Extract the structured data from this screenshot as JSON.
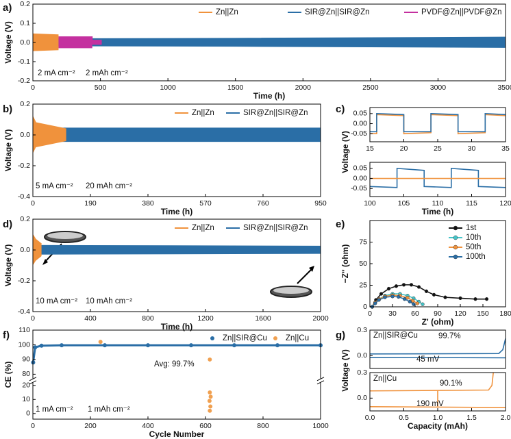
{
  "chart_data": [
    {
      "panel": "a)",
      "type": "band",
      "xlabel": "Time (h)",
      "ylabel": "Voltage (V)",
      "xlim": [
        0,
        3500
      ],
      "xticks": [
        0,
        500,
        1000,
        1500,
        2000,
        2500,
        3000,
        3500
      ],
      "ylim": [
        -0.2,
        0.2
      ],
      "yticks": [
        -0.2,
        -0.1,
        {
          "value": 0,
          "label": "0.0"
        },
        0.1,
        0.2
      ],
      "annotations": [
        "2 mA cm⁻²",
        "2 mAh cm⁻²"
      ],
      "series": [
        {
          "name": "Zn||Zn",
          "color": "#f0923c",
          "x": [
            0,
            190
          ],
          "values": [
            0.045,
            0.04
          ]
        },
        {
          "name": "SIR@Zn||SIR@Zn",
          "color": "#2a6ea6",
          "x": [
            0,
            500,
            1500,
            3500
          ],
          "values": [
            0.02,
            0.02,
            0.022,
            0.028
          ]
        },
        {
          "name": "PVDF@Zn||PVDF@Zn",
          "color": "#c4309f",
          "x": [
            190,
            440,
            440,
            510
          ],
          "values": [
            0.03,
            0.03,
            0.012,
            0.012
          ]
        }
      ]
    },
    {
      "panel": "b)",
      "type": "band",
      "xlabel": "Time (h)",
      "ylabel": "Voltage (V)",
      "xlim": [
        0,
        950
      ],
      "xticks": [
        0,
        190,
        380,
        570,
        760,
        950
      ],
      "ylim": [
        -0.4,
        0.2
      ],
      "yticks": [
        -0.4,
        -0.2,
        {
          "value": 0,
          "label": "0.0"
        },
        0.2
      ],
      "annotations": [
        "5 mA cm⁻²",
        "20 mAh cm⁻²"
      ],
      "series": [
        {
          "name": "Zn||Zn",
          "color": "#f0923c",
          "x": [
            0,
            10,
            110
          ],
          "values": [
            0.12,
            0.08,
            0.04
          ]
        },
        {
          "name": "SIR@Zn||SIR@Zn",
          "color": "#2a6ea6",
          "x": [
            0,
            950
          ],
          "values": [
            0.045,
            0.045
          ]
        }
      ]
    },
    {
      "panel": "c)",
      "type": "line",
      "xlabel": "Time (h)",
      "ylabel": "Voltage (V)",
      "subplots": [
        {
          "xlim": [
            15,
            35
          ],
          "xticks": [
            15,
            20,
            25,
            30,
            35
          ],
          "ylim": [
            -0.09,
            0.08
          ],
          "yticks": [
            -0.05,
            {
              "value": 0,
              "label": "0.00"
            },
            0.05
          ],
          "series": [
            {
              "color": "#f0923c",
              "x": [
                15,
                16,
                16,
                20,
                20,
                24,
                24,
                28,
                28,
                32,
                32,
                35
              ],
              "values": [
                -0.05,
                -0.05,
                0.045,
                0.04,
                -0.05,
                -0.045,
                0.045,
                0.04,
                -0.05,
                -0.045,
                0.045,
                0.04
              ]
            },
            {
              "color": "#2a6ea6",
              "x": [
                15,
                16,
                16,
                20,
                20,
                24,
                24,
                28,
                28,
                32,
                32,
                35
              ],
              "values": [
                -0.04,
                -0.04,
                0.05,
                0.045,
                -0.04,
                -0.04,
                0.05,
                0.045,
                -0.04,
                -0.04,
                0.05,
                0.045
              ]
            }
          ]
        },
        {
          "xlim": [
            100,
            120
          ],
          "xticks": [
            100,
            105,
            110,
            115,
            120
          ],
          "ylim": [
            -0.09,
            0.08
          ],
          "yticks": [
            -0.05,
            {
              "value": 0,
              "label": "0.00"
            },
            0.05
          ],
          "series": [
            {
              "color": "#2a6ea6",
              "x": [
                100,
                104,
                104,
                108,
                108,
                112,
                112,
                116,
                116,
                120
              ],
              "values": [
                -0.04,
                -0.045,
                0.05,
                0.04,
                -0.04,
                -0.045,
                0.05,
                0.04,
                -0.04,
                -0.045
              ]
            },
            {
              "color": "#f0923c",
              "x": [
                100,
                120
              ],
              "values": [
                0,
                0
              ]
            }
          ]
        }
      ]
    },
    {
      "panel": "d)",
      "type": "band",
      "xlabel": "Time (h)",
      "ylabel": "Voltage (V)",
      "xlim": [
        0,
        2000
      ],
      "xticks": [
        0,
        400,
        800,
        1200,
        1600,
        2000
      ],
      "ylim": [
        -0.4,
        0.2
      ],
      "yticks": [
        -0.4,
        -0.2,
        {
          "value": 0,
          "label": "0.0"
        },
        0.2
      ],
      "annotations": [
        "10 mA cm⁻²",
        "10 mAh cm⁻²"
      ],
      "series": [
        {
          "name": "Zn||Zn",
          "color": "#f0923c",
          "x": [
            0,
            20,
            60
          ],
          "values": [
            0.1,
            0.07,
            0.04
          ]
        },
        {
          "name": "SIR@Zn||SIR@Zn",
          "color": "#2a6ea6",
          "x": [
            0,
            2000
          ],
          "values": [
            0.03,
            0.025
          ]
        }
      ]
    },
    {
      "panel": "e)",
      "type": "line",
      "xlabel": "Z' (ohm)",
      "ylabel": "−Z'' (ohm)",
      "xlim": [
        0,
        180
      ],
      "xticks": [
        0,
        30,
        60,
        90,
        120,
        150,
        180
      ],
      "ylim": [
        0,
        100
      ],
      "yticks": [
        0,
        25,
        50,
        75
      ],
      "series": [
        {
          "name": "1st",
          "color": "#111111",
          "markers": true,
          "x": [
            3,
            8,
            15,
            25,
            35,
            45,
            55,
            65,
            75,
            85,
            100,
            120,
            140,
            155
          ],
          "values": [
            0,
            8,
            15,
            21,
            24,
            25.5,
            25.5,
            23,
            18,
            14,
            11,
            10,
            9,
            9
          ]
        },
        {
          "name": "10th",
          "color": "#45c4c8",
          "markers": true,
          "x": [
            3,
            7,
            12,
            20,
            30,
            40,
            50,
            58,
            65,
            70
          ],
          "values": [
            0,
            5,
            9,
            13,
            15,
            15,
            13,
            10,
            6,
            3
          ]
        },
        {
          "name": "50th",
          "color": "#f0923c",
          "markers": true,
          "x": [
            3,
            7,
            12,
            20,
            30,
            40,
            50,
            57,
            63
          ],
          "values": [
            0,
            5,
            9,
            12,
            13.5,
            13,
            10.5,
            7,
            4
          ]
        },
        {
          "name": "100th",
          "color": "#2a6ea6",
          "markers": true,
          "x": [
            3,
            7,
            12,
            20,
            30,
            38,
            46,
            53,
            58
          ],
          "values": [
            0,
            4,
            8,
            11,
            12,
            11.5,
            9,
            6,
            3
          ]
        }
      ]
    },
    {
      "panel": "f)",
      "type": "line",
      "xlabel": "Cycle Number",
      "ylabel": "CE (%)",
      "xlim": [
        0,
        1000
      ],
      "xticks": [
        0,
        200,
        400,
        600,
        800,
        1000
      ],
      "ylim": [
        -4,
        110
      ],
      "ybreak": [
        22,
        77
      ],
      "yticks": [
        0,
        10,
        20,
        80,
        90,
        100,
        110
      ],
      "annotations": [
        "Avg: 99.7%",
        "1 mA cm⁻²",
        "1 mAh cm⁻²"
      ],
      "series": [
        {
          "name": "Zn||SIR@Cu",
          "color": "#2a6ea6",
          "markers": true,
          "x": [
            1,
            8,
            30,
            100,
            250,
            400,
            550,
            700,
            850,
            1000
          ],
          "values": [
            88,
            98.3,
            99.4,
            99.7,
            99.7,
            99.7,
            99.7,
            99.7,
            99.7,
            99.7
          ]
        },
        {
          "name": "Zn||Cu",
          "color": "#f0a050",
          "mode": "markers",
          "x": [
            235,
            615,
            615,
            618,
            614,
            617,
            615
          ],
          "values": [
            102,
            90,
            15,
            12,
            9,
            5,
            2
          ]
        }
      ]
    },
    {
      "panel": "g)",
      "type": "line",
      "xlabel": "Capacity (mAh)",
      "ylabel": "Voltage (V)",
      "subplots": [
        {
          "xlim": [
            0,
            2
          ],
          "ylim": [
            -0.15,
            0.3
          ],
          "yticks": [
            {
              "value": 0,
              "label": "0.0"
            },
            0.3
          ],
          "annotations": [
            "Zn||SIR@Cu",
            "99.7%",
            "45 mV"
          ],
          "series": [
            {
              "color": "#2a6ea6",
              "x": [
                0,
                2
              ],
              "values": [
                -0.02,
                -0.025
              ]
            },
            {
              "color": "#2a6ea6",
              "x": [
                0,
                1.9,
                1.96,
                2
              ],
              "values": [
                0.02,
                0.025,
                0.07,
                0.2
              ]
            }
          ]
        },
        {
          "xlim": [
            0,
            2
          ],
          "xticks": [
            {
              "value": 0,
              "label": "0.0"
            },
            0.5,
            {
              "value": 1,
              "label": "1.0"
            },
            1.5,
            {
              "value": 2,
              "label": "2.0"
            }
          ],
          "ylim": [
            -0.15,
            0.3
          ],
          "yticks": [
            {
              "value": 0,
              "label": "0.0"
            },
            0.3
          ],
          "annotations": [
            "Zn||Cu",
            "90.1%",
            "190 mV"
          ],
          "series": [
            {
              "color": "#f0923c",
              "x": [
                0,
                2
              ],
              "values": [
                -0.1,
                -0.11
              ]
            },
            {
              "color": "#f0923c",
              "x": [
                0,
                1.75,
                1.8,
                1.82
              ],
              "values": [
                0.085,
                0.095,
                0.15,
                0.3
              ]
            },
            {
              "color": "#f0923c",
              "x": [
                1,
                1
              ],
              "values": [
                -0.1,
                0.085
              ]
            }
          ]
        }
      ]
    }
  ]
}
